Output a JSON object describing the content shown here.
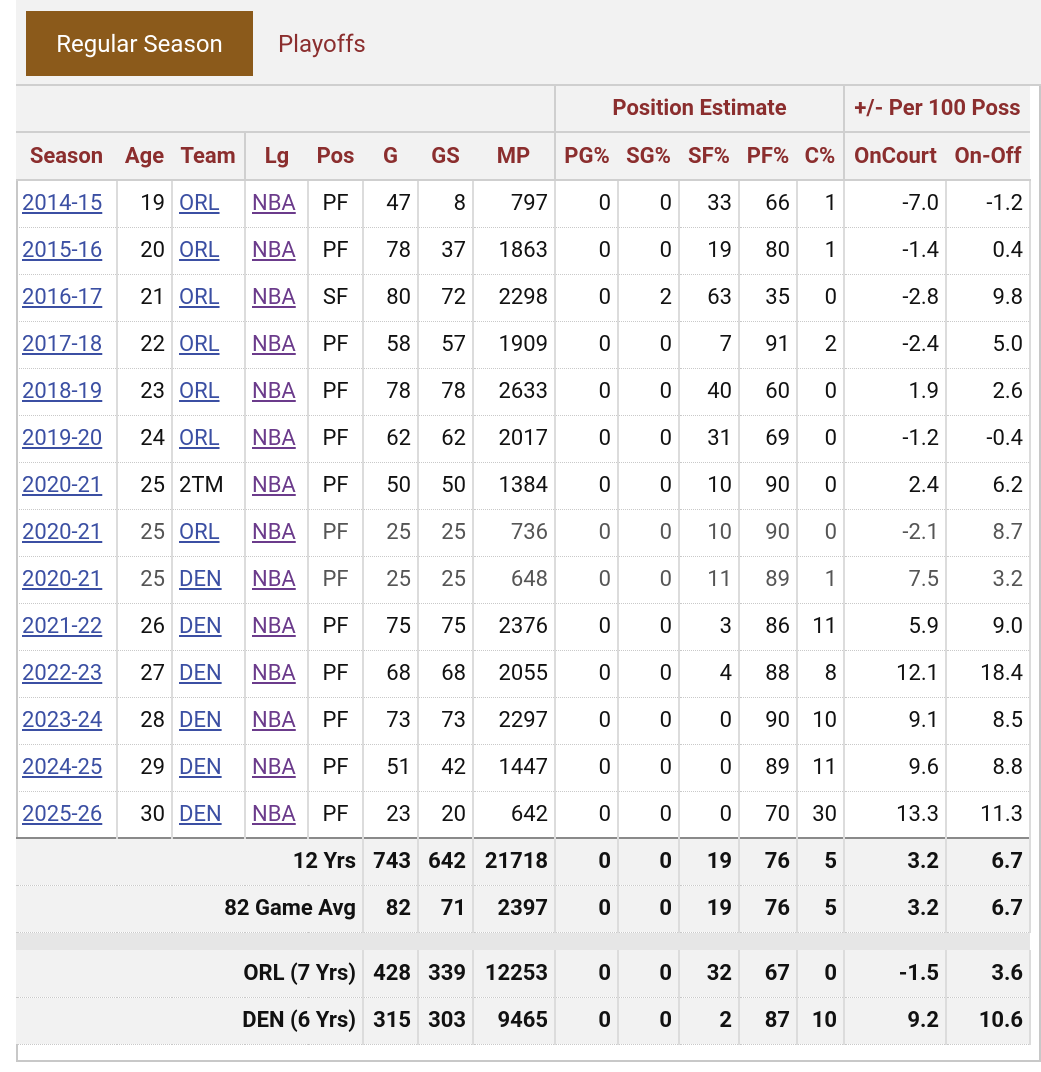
{
  "tabs": {
    "active": "Regular Season",
    "inactive": "Playoffs"
  },
  "header": {
    "groups": {
      "position": "Position Estimate",
      "plusminus": "+/- Per 100 Poss"
    },
    "columns": [
      "Season",
      "Age",
      "Team",
      "Lg",
      "Pos",
      "G",
      "GS",
      "MP",
      "PG%",
      "SG%",
      "SF%",
      "PF%",
      "C%",
      "OnCourt",
      "On-Off"
    ]
  },
  "rows": [
    {
      "season": "2014-15",
      "age": "19",
      "team": "ORL",
      "lg": "NBA",
      "pos": "PF",
      "g": "47",
      "gs": "8",
      "mp": "797",
      "pg": "0",
      "sg": "0",
      "sf": "33",
      "pf": "66",
      "c": "1",
      "on": "-7.0",
      "onoff": "-1.2",
      "on_c": "neg",
      "onoff_c": "neg",
      "sub": false
    },
    {
      "season": "2015-16",
      "age": "20",
      "team": "ORL",
      "lg": "NBA",
      "pos": "PF",
      "g": "78",
      "gs": "37",
      "mp": "1863",
      "pg": "0",
      "sg": "0",
      "sf": "19",
      "pf": "80",
      "c": "1",
      "on": "-1.4",
      "onoff": "0.4",
      "on_c": "neg",
      "onoff_c": "pos",
      "sub": false
    },
    {
      "season": "2016-17",
      "age": "21",
      "team": "ORL",
      "lg": "NBA",
      "pos": "SF",
      "g": "80",
      "gs": "72",
      "mp": "2298",
      "pg": "0",
      "sg": "2",
      "sf": "63",
      "pf": "35",
      "c": "0",
      "on": "-2.8",
      "onoff": "9.8",
      "on_c": "neg",
      "onoff_c": "pos",
      "sub": false
    },
    {
      "season": "2017-18",
      "age": "22",
      "team": "ORL",
      "lg": "NBA",
      "pos": "PF",
      "g": "58",
      "gs": "57",
      "mp": "1909",
      "pg": "0",
      "sg": "0",
      "sf": "7",
      "pf": "91",
      "c": "2",
      "on": "-2.4",
      "onoff": "5.0",
      "on_c": "neg",
      "onoff_c": "pos",
      "sub": false
    },
    {
      "season": "2018-19",
      "age": "23",
      "team": "ORL",
      "lg": "NBA",
      "pos": "PF",
      "g": "78",
      "gs": "78",
      "mp": "2633",
      "pg": "0",
      "sg": "0",
      "sf": "40",
      "pf": "60",
      "c": "0",
      "on": "1.9",
      "onoff": "2.6",
      "on_c": "pos",
      "onoff_c": "pos",
      "sub": false
    },
    {
      "season": "2019-20",
      "age": "24",
      "team": "ORL",
      "lg": "NBA",
      "pos": "PF",
      "g": "62",
      "gs": "62",
      "mp": "2017",
      "pg": "0",
      "sg": "0",
      "sf": "31",
      "pf": "69",
      "c": "0",
      "on": "-1.2",
      "onoff": "-0.4",
      "on_c": "neg",
      "onoff_c": "neg",
      "sub": false
    },
    {
      "season": "2020-21",
      "age": "25",
      "team": "2TM",
      "lg": "NBA",
      "pos": "PF",
      "g": "50",
      "gs": "50",
      "mp": "1384",
      "pg": "0",
      "sg": "0",
      "sf": "10",
      "pf": "90",
      "c": "0",
      "on": "2.4",
      "onoff": "6.2",
      "on_c": "pos",
      "onoff_c": "pos",
      "sub": false
    },
    {
      "season": "2020-21",
      "age": "25",
      "team": "ORL",
      "lg": "NBA",
      "pos": "PF",
      "g": "25",
      "gs": "25",
      "mp": "736",
      "pg": "0",
      "sg": "0",
      "sf": "10",
      "pf": "90",
      "c": "0",
      "on": "-2.1",
      "onoff": "8.7",
      "on_c": "neg",
      "onoff_c": "pos",
      "sub": true
    },
    {
      "season": "2020-21",
      "age": "25",
      "team": "DEN",
      "lg": "NBA",
      "pos": "PF",
      "g": "25",
      "gs": "25",
      "mp": "648",
      "pg": "0",
      "sg": "0",
      "sf": "11",
      "pf": "89",
      "c": "1",
      "on": "7.5",
      "onoff": "3.2",
      "on_c": "pos",
      "onoff_c": "pos",
      "sub": true
    },
    {
      "season": "2021-22",
      "age": "26",
      "team": "DEN",
      "lg": "NBA",
      "pos": "PF",
      "g": "75",
      "gs": "75",
      "mp": "2376",
      "pg": "0",
      "sg": "0",
      "sf": "3",
      "pf": "86",
      "c": "11",
      "on": "5.9",
      "onoff": "9.0",
      "on_c": "pos",
      "onoff_c": "pos",
      "sub": false
    },
    {
      "season": "2022-23",
      "age": "27",
      "team": "DEN",
      "lg": "NBA",
      "pos": "PF",
      "g": "68",
      "gs": "68",
      "mp": "2055",
      "pg": "0",
      "sg": "0",
      "sf": "4",
      "pf": "88",
      "c": "8",
      "on": "12.1",
      "onoff": "18.4",
      "on_c": "pos",
      "onoff_c": "pos",
      "sub": false
    },
    {
      "season": "2023-24",
      "age": "28",
      "team": "DEN",
      "lg": "NBA",
      "pos": "PF",
      "g": "73",
      "gs": "73",
      "mp": "2297",
      "pg": "0",
      "sg": "0",
      "sf": "0",
      "pf": "90",
      "c": "10",
      "on": "9.1",
      "onoff": "8.5",
      "on_c": "pos",
      "onoff_c": "pos",
      "sub": false
    },
    {
      "season": "2024-25",
      "age": "29",
      "team": "DEN",
      "lg": "NBA",
      "pos": "PF",
      "g": "51",
      "gs": "42",
      "mp": "1447",
      "pg": "0",
      "sg": "0",
      "sf": "0",
      "pf": "89",
      "c": "11",
      "on": "9.6",
      "onoff": "8.8",
      "on_c": "pos",
      "onoff_c": "pos",
      "sub": false
    },
    {
      "season": "2025-26",
      "age": "30",
      "team": "DEN",
      "lg": "NBA",
      "pos": "PF",
      "g": "23",
      "gs": "20",
      "mp": "642",
      "pg": "0",
      "sg": "0",
      "sf": "0",
      "pf": "70",
      "c": "30",
      "on": "13.3",
      "onoff": "11.3",
      "on_c": "pos",
      "onoff_c": "pos",
      "sub": false
    }
  ],
  "totals": [
    {
      "label": "12 Yrs",
      "g": "743",
      "gs": "642",
      "mp": "21718",
      "pg": "0",
      "sg": "0",
      "sf": "19",
      "pf": "76",
      "c": "5",
      "on": "3.2",
      "onoff": "6.7"
    },
    {
      "label": "82 Game Avg",
      "g": "82",
      "gs": "71",
      "mp": "2397",
      "pg": "0",
      "sg": "0",
      "sf": "19",
      "pf": "76",
      "c": "5",
      "on": "3.2",
      "onoff": "6.7"
    }
  ],
  "team_totals": [
    {
      "label": "ORL (7 Yrs)",
      "g": "428",
      "gs": "339",
      "mp": "12253",
      "pg": "0",
      "sg": "0",
      "sf": "32",
      "pf": "67",
      "c": "0",
      "on": "-1.5",
      "onoff": "3.6"
    },
    {
      "label": "DEN (6 Yrs)",
      "g": "315",
      "gs": "303",
      "mp": "9465",
      "pg": "0",
      "sg": "0",
      "sf": "2",
      "pf": "87",
      "c": "10",
      "on": "9.2",
      "onoff": "10.6"
    }
  ]
}
